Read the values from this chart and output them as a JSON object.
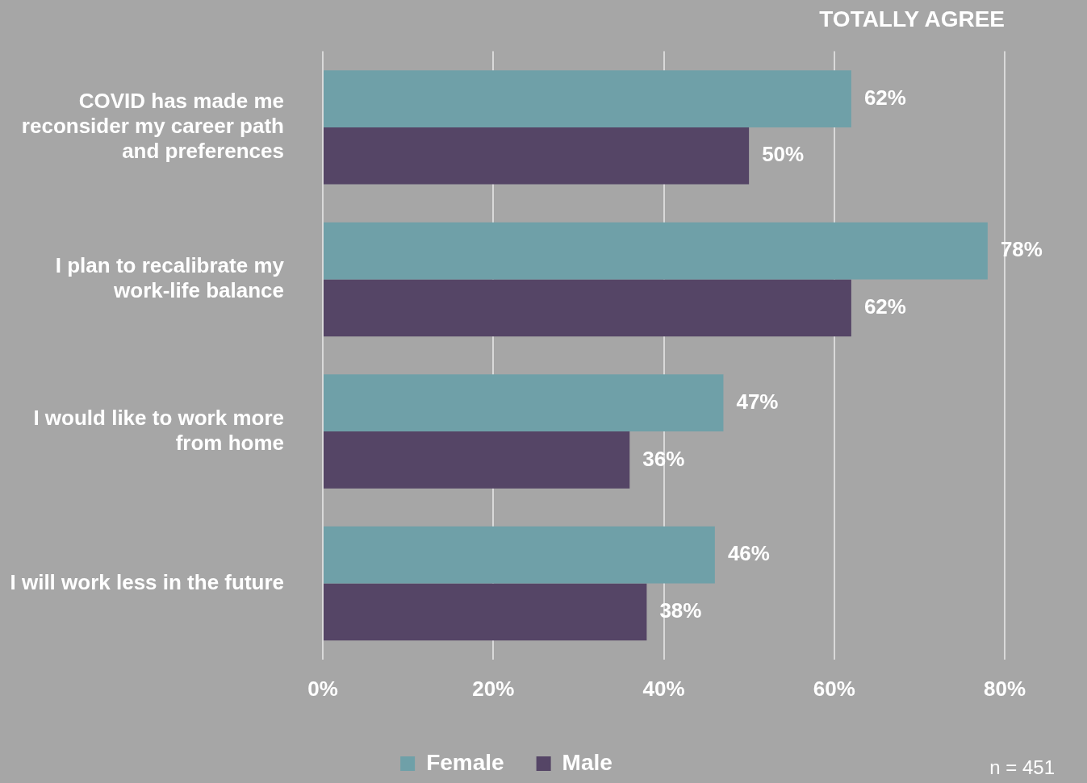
{
  "chart_data": {
    "type": "bar",
    "orientation": "horizontal",
    "title": "TOTALLY AGREE",
    "categories": [
      "COVID has made me reconsider my career path and preferences",
      "I plan to recalibrate my work-life balance",
      "I would like to work more from home",
      "I will work less in the future"
    ],
    "series": [
      {
        "name": "Female",
        "color": "#6fa0a8",
        "values": [
          62,
          78,
          47,
          46
        ],
        "value_labels": [
          "62%",
          "78%",
          "47%",
          "46%"
        ]
      },
      {
        "name": "Male",
        "color": "#554566",
        "values": [
          50,
          62,
          36,
          38
        ],
        "value_labels": [
          "50%",
          "62%",
          "36%",
          "38%"
        ]
      }
    ],
    "xlim": [
      0,
      80
    ],
    "xticks": [
      {
        "value": 0,
        "label": "0%"
      },
      {
        "value": 20,
        "label": "20%"
      },
      {
        "value": 40,
        "label": "40%"
      },
      {
        "value": 60,
        "label": "60%"
      },
      {
        "value": 80,
        "label": "80%"
      }
    ],
    "grid": "x",
    "legend": "bottom",
    "annotations": [
      "n = 451"
    ]
  }
}
